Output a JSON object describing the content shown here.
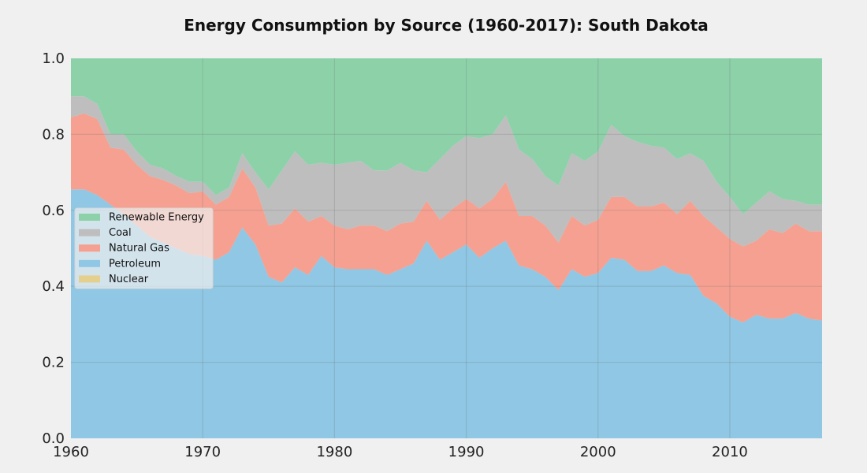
{
  "chart_data": {
    "type": "area",
    "title": "Energy Consumption by Source (1960-2017): South Dakota",
    "xlabel": "",
    "ylabel": "",
    "xlim": [
      1960,
      2017
    ],
    "ylim": [
      0,
      1
    ],
    "grid": true,
    "legend_position": "middle-left",
    "x_ticks": [
      "1960",
      "1970",
      "1980",
      "1990",
      "2000",
      "2010"
    ],
    "y_ticks": [
      "0.0",
      "0.2",
      "0.4",
      "0.6",
      "0.8",
      "1.0"
    ],
    "x": [
      1960,
      1961,
      1962,
      1963,
      1964,
      1965,
      1966,
      1967,
      1968,
      1969,
      1970,
      1971,
      1972,
      1973,
      1974,
      1975,
      1976,
      1977,
      1978,
      1979,
      1980,
      1981,
      1982,
      1983,
      1984,
      1985,
      1986,
      1987,
      1988,
      1989,
      1990,
      1991,
      1992,
      1993,
      1994,
      1995,
      1996,
      1997,
      1998,
      1999,
      2000,
      2001,
      2002,
      2003,
      2004,
      2005,
      2006,
      2007,
      2008,
      2009,
      2010,
      2011,
      2012,
      2013,
      2014,
      2015,
      2016,
      2017
    ],
    "series": [
      {
        "name": "Nuclear",
        "color": "#e5cf8c",
        "values": [
          0,
          0,
          0,
          0,
          0,
          0,
          0,
          0,
          0,
          0,
          0,
          0,
          0,
          0,
          0,
          0,
          0,
          0,
          0,
          0,
          0,
          0,
          0,
          0,
          0,
          0,
          0,
          0,
          0,
          0,
          0,
          0,
          0,
          0,
          0,
          0,
          0,
          0,
          0,
          0,
          0,
          0,
          0,
          0,
          0,
          0,
          0,
          0,
          0,
          0,
          0,
          0,
          0,
          0,
          0,
          0,
          0,
          0
        ]
      },
      {
        "name": "Petroleum",
        "color": "#8fc7e4",
        "values": [
          0.655,
          0.655,
          0.64,
          0.615,
          0.59,
          0.56,
          0.53,
          0.515,
          0.5,
          0.485,
          0.48,
          0.47,
          0.49,
          0.555,
          0.51,
          0.425,
          0.41,
          0.45,
          0.43,
          0.48,
          0.45,
          0.445,
          0.445,
          0.445,
          0.43,
          0.445,
          0.46,
          0.52,
          0.47,
          0.49,
          0.51,
          0.475,
          0.5,
          0.52,
          0.455,
          0.445,
          0.425,
          0.39,
          0.445,
          0.425,
          0.435,
          0.475,
          0.47,
          0.44,
          0.44,
          0.455,
          0.435,
          0.43,
          0.375,
          0.355,
          0.32,
          0.305,
          0.325,
          0.315,
          0.315,
          0.33,
          0.315,
          0.31
        ]
      },
      {
        "name": "Natural Gas",
        "color": "#f5a090",
        "values": [
          0.19,
          0.2,
          0.2,
          0.15,
          0.17,
          0.16,
          0.16,
          0.165,
          0.165,
          0.16,
          0.17,
          0.145,
          0.145,
          0.155,
          0.15,
          0.135,
          0.155,
          0.155,
          0.14,
          0.105,
          0.11,
          0.105,
          0.115,
          0.115,
          0.115,
          0.12,
          0.11,
          0.105,
          0.105,
          0.115,
          0.12,
          0.13,
          0.13,
          0.155,
          0.13,
          0.14,
          0.135,
          0.125,
          0.14,
          0.135,
          0.14,
          0.16,
          0.165,
          0.17,
          0.17,
          0.165,
          0.155,
          0.195,
          0.21,
          0.2,
          0.205,
          0.2,
          0.195,
          0.235,
          0.225,
          0.235,
          0.23,
          0.235
        ]
      },
      {
        "name": "Coal",
        "color": "#bebebe",
        "values": [
          0.055,
          0.045,
          0.04,
          0.035,
          0.04,
          0.035,
          0.03,
          0.03,
          0.025,
          0.03,
          0.025,
          0.025,
          0.025,
          0.04,
          0.04,
          0.095,
          0.14,
          0.15,
          0.15,
          0.14,
          0.16,
          0.175,
          0.17,
          0.145,
          0.16,
          0.16,
          0.135,
          0.075,
          0.16,
          0.165,
          0.165,
          0.185,
          0.17,
          0.175,
          0.175,
          0.15,
          0.13,
          0.15,
          0.165,
          0.17,
          0.18,
          0.19,
          0.16,
          0.17,
          0.16,
          0.145,
          0.145,
          0.125,
          0.145,
          0.12,
          0.11,
          0.085,
          0.1,
          0.1,
          0.09,
          0.06,
          0.07,
          0.07
        ]
      },
      {
        "name": "Renewable Energy",
        "color": "#8dd1a9",
        "values": [
          0.1,
          0.1,
          0.12,
          0.2,
          0.2,
          0.245,
          0.28,
          0.29,
          0.31,
          0.325,
          0.325,
          0.36,
          0.34,
          0.25,
          0.3,
          0.345,
          0.295,
          0.245,
          0.28,
          0.275,
          0.28,
          0.275,
          0.27,
          0.295,
          0.295,
          0.275,
          0.295,
          0.3,
          0.265,
          0.23,
          0.205,
          0.21,
          0.2,
          0.15,
          0.24,
          0.265,
          0.31,
          0.335,
          0.25,
          0.27,
          0.245,
          0.175,
          0.205,
          0.22,
          0.23,
          0.235,
          0.265,
          0.25,
          0.27,
          0.325,
          0.365,
          0.41,
          0.38,
          0.35,
          0.37,
          0.375,
          0.385,
          0.385
        ]
      }
    ],
    "legend": {
      "items": [
        {
          "name": "Renewable Energy",
          "color": "#8dd1a9"
        },
        {
          "name": "Coal",
          "color": "#bebebe"
        },
        {
          "name": "Natural Gas",
          "color": "#f5a090"
        },
        {
          "name": "Petroleum",
          "color": "#8fc7e4"
        },
        {
          "name": "Nuclear",
          "color": "#e5cf8c"
        }
      ]
    }
  }
}
